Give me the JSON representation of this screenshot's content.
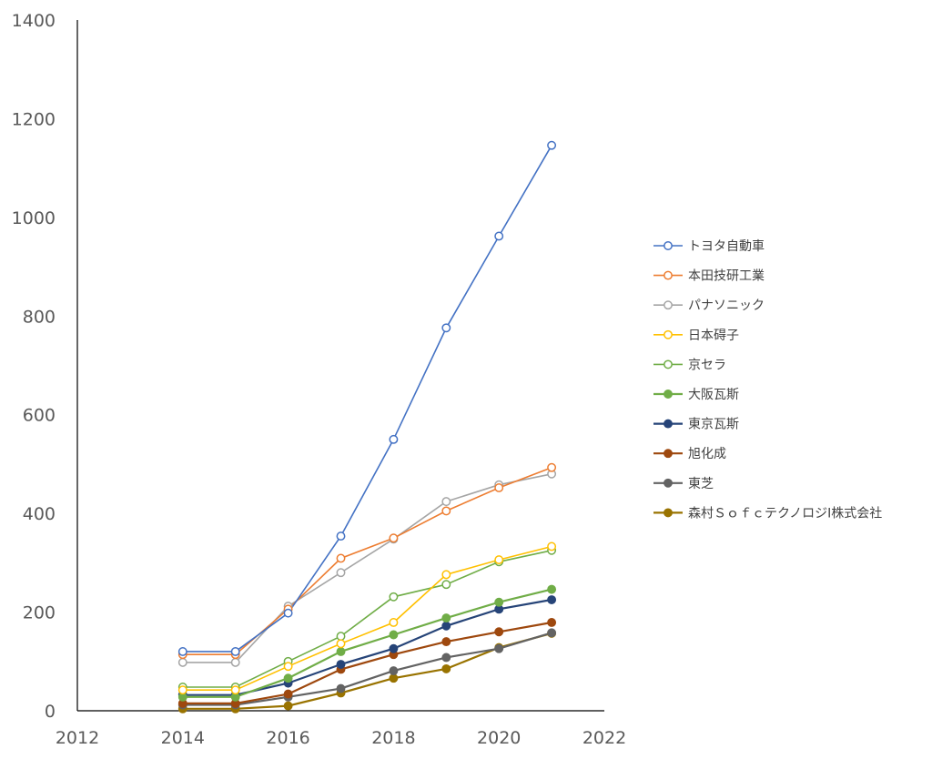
{
  "chart_data": {
    "type": "line",
    "title": "",
    "xlabel": "",
    "ylabel": "",
    "xlim": [
      2012,
      2022
    ],
    "ylim": [
      0,
      1400
    ],
    "x_ticks": [
      2012,
      2014,
      2016,
      2018,
      2020,
      2022
    ],
    "y_ticks": [
      0,
      200,
      400,
      600,
      800,
      1000,
      1200,
      1400
    ],
    "x_tick_labels": [
      "2012",
      "2014",
      "2016",
      "2018",
      "2020",
      "2022"
    ],
    "y_tick_labels": [
      "0",
      "200",
      "400",
      "600",
      "800",
      "1000",
      "1200",
      "1400"
    ],
    "grid": false,
    "legend_position": "right",
    "x": [
      2014,
      2015,
      2016,
      2017,
      2018,
      2019,
      2020,
      2021
    ],
    "series": [
      {
        "name": "トヨタ自動車",
        "color": "#4472C4",
        "marker": "open",
        "values": [
          120,
          120,
          198,
          354,
          550,
          776,
          962,
          1146
        ]
      },
      {
        "name": "本田技研工業",
        "color": "#ED7D31",
        "marker": "open",
        "values": [
          114,
          114,
          206,
          309,
          350,
          405,
          452,
          493
        ]
      },
      {
        "name": "パナソニック",
        "color": "#A5A5A5",
        "marker": "open",
        "values": [
          98,
          98,
          212,
          280,
          348,
          424,
          458,
          480
        ]
      },
      {
        "name": "日本碍子",
        "color": "#FFC000",
        "marker": "open",
        "values": [
          42,
          42,
          90,
          136,
          179,
          276,
          306,
          333
        ]
      },
      {
        "name": "京セラ",
        "color": "#70AD47",
        "marker": "open",
        "values": [
          48,
          48,
          100,
          151,
          231,
          256,
          302,
          325
        ]
      },
      {
        "name": "大阪瓦斯",
        "color": "#70AD47",
        "marker": "filled",
        "values": [
          28,
          28,
          66,
          120,
          154,
          188,
          220,
          246
        ]
      },
      {
        "name": "東京瓦斯",
        "color": "#264478",
        "marker": "filled",
        "values": [
          32,
          32,
          56,
          94,
          126,
          172,
          206,
          225
        ]
      },
      {
        "name": "旭化成",
        "color": "#9E480E",
        "marker": "filled",
        "values": [
          15,
          15,
          34,
          84,
          114,
          140,
          160,
          179
        ]
      },
      {
        "name": "東芝",
        "color": "#636363",
        "marker": "filled",
        "values": [
          12,
          12,
          28,
          45,
          81,
          108,
          126,
          158
        ]
      },
      {
        "name": "森村ＳｏｆｃテクノロジⅠ株式会社",
        "color": "#997300",
        "marker": "filled",
        "values": [
          4,
          4,
          10,
          36,
          66,
          85,
          128,
          157
        ]
      }
    ]
  }
}
